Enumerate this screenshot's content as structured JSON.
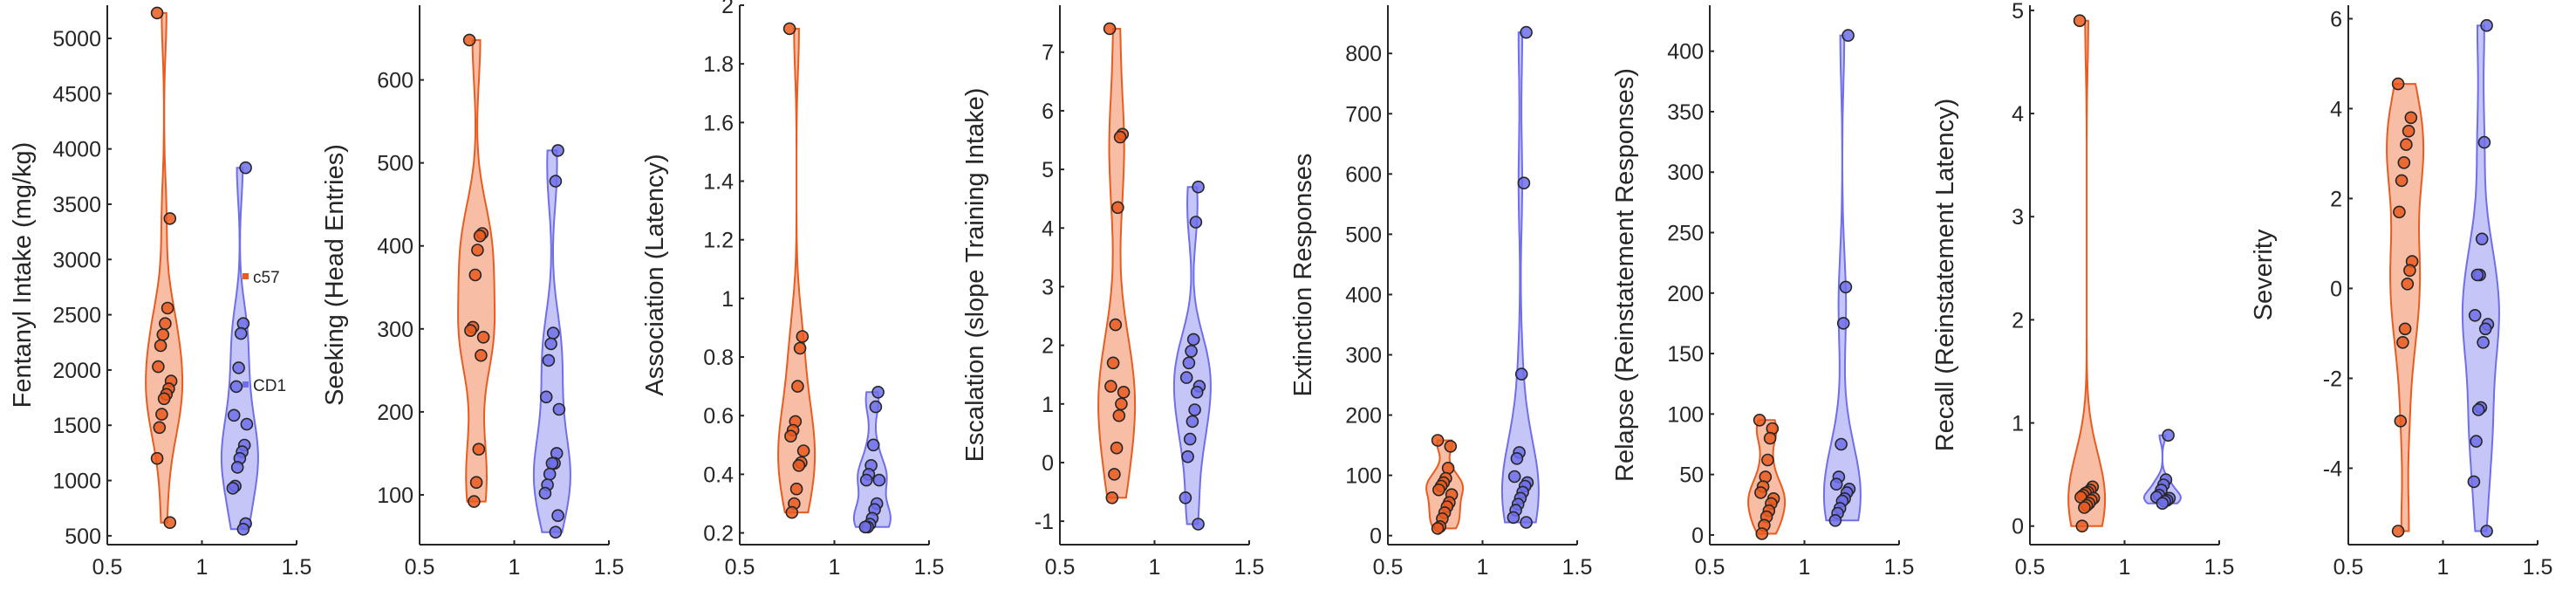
{
  "colors": {
    "c57": "#ea5b1f",
    "CD1": "#6f6fea"
  },
  "legend": {
    "c57": "c57",
    "CD1": "CD1"
  },
  "chart_data": [
    {
      "type": "violin",
      "ylabel": "Fentanyl Intake (mg/kg)",
      "xlim": [
        0.5,
        1.5
      ],
      "xticks": [
        0.5,
        1,
        1.5
      ],
      "xticklabels": [
        "0.5",
        "1",
        "1.5"
      ],
      "ylim": [
        420,
        5300
      ],
      "yticks": [
        500,
        1000,
        1500,
        2000,
        2500,
        3000,
        3500,
        4000,
        4500,
        5000
      ],
      "series": [
        {
          "name": "c57",
          "x": 0.8,
          "values": [
            5230,
            3370,
            2560,
            2420,
            2320,
            2220,
            2030,
            1900,
            1830,
            1780,
            1740,
            1600,
            1480,
            1200,
            620
          ]
        },
        {
          "name": "CD1",
          "x": 1.2,
          "values": [
            3830,
            2420,
            2330,
            2020,
            1850,
            1590,
            1510,
            1320,
            1260,
            1200,
            1120,
            950,
            930,
            610,
            560
          ]
        }
      ]
    },
    {
      "type": "violin",
      "ylabel": "Seeking (Head Entries)",
      "xlim": [
        0.5,
        1.5
      ],
      "xticks": [
        0.5,
        1,
        1.5
      ],
      "xticklabels": [
        "0.5",
        "1",
        "1.5"
      ],
      "ylim": [
        40,
        690
      ],
      "yticks": [
        100,
        200,
        300,
        400,
        500,
        600
      ],
      "series": [
        {
          "name": "c57",
          "x": 0.8,
          "values": [
            648,
            415,
            412,
            395,
            365,
            302,
            298,
            290,
            268,
            155,
            115,
            92
          ]
        },
        {
          "name": "CD1",
          "x": 1.2,
          "values": [
            515,
            478,
            295,
            282,
            262,
            218,
            203,
            150,
            138,
            138,
            125,
            112,
            102,
            75,
            55
          ]
        }
      ]
    },
    {
      "type": "violin",
      "ylabel": "Association (Latency)",
      "xlim": [
        0.5,
        1.5
      ],
      "xticks": [
        0.5,
        1,
        1.5
      ],
      "xticklabels": [
        "0.5",
        "1",
        "1.5"
      ],
      "ylim": [
        0.16,
        2.0
      ],
      "yticks": [
        0.2,
        0.4,
        0.6,
        0.8,
        1,
        1.2,
        1.4,
        1.6,
        1.8,
        2
      ],
      "series": [
        {
          "name": "c57",
          "x": 0.8,
          "values": [
            1.92,
            0.87,
            0.83,
            0.7,
            0.58,
            0.55,
            0.53,
            0.48,
            0.44,
            0.43,
            0.35,
            0.3,
            0.27
          ]
        },
        {
          "name": "CD1",
          "x": 1.2,
          "values": [
            0.68,
            0.63,
            0.5,
            0.43,
            0.4,
            0.38,
            0.38,
            0.3,
            0.28,
            0.25,
            0.23,
            0.22,
            0.22
          ]
        }
      ]
    },
    {
      "type": "violin",
      "ylabel": "Escalation (slope Training Intake)",
      "xlim": [
        0.5,
        1.5
      ],
      "xticks": [
        0.5,
        1,
        1.5
      ],
      "xticklabels": [
        "0.5",
        "1",
        "1.5"
      ],
      "ylim": [
        -1.4,
        7.8
      ],
      "yticks": [
        -1,
        0,
        1,
        2,
        3,
        4,
        5,
        6,
        7
      ],
      "series": [
        {
          "name": "c57",
          "x": 0.8,
          "values": [
            7.4,
            5.6,
            5.55,
            4.35,
            2.35,
            1.7,
            1.3,
            1.2,
            1.0,
            0.8,
            0.25,
            -0.2,
            -0.6
          ]
        },
        {
          "name": "CD1",
          "x": 1.2,
          "values": [
            4.7,
            4.1,
            2.1,
            1.9,
            1.7,
            1.45,
            1.3,
            1.2,
            0.9,
            0.7,
            0.4,
            0.1,
            -0.6,
            -1.05
          ]
        }
      ]
    },
    {
      "type": "violin",
      "ylabel": "Extinction Responses",
      "xlim": [
        0.5,
        1.5
      ],
      "xticks": [
        0.5,
        1,
        1.5
      ],
      "xticklabels": [
        "0.5",
        "1",
        "1.5"
      ],
      "ylim": [
        -15,
        880
      ],
      "yticks": [
        0,
        100,
        200,
        300,
        400,
        500,
        600,
        700,
        800
      ],
      "series": [
        {
          "name": "c57",
          "x": 0.8,
          "values": [
            158,
            148,
            112,
            95,
            88,
            82,
            76,
            68,
            55,
            48,
            38,
            28,
            15,
            12
          ]
        },
        {
          "name": "CD1",
          "x": 1.2,
          "values": [
            835,
            585,
            268,
            138,
            128,
            98,
            88,
            82,
            72,
            62,
            52,
            42,
            30,
            22
          ]
        }
      ]
    },
    {
      "type": "violin",
      "ylabel": "Relapse (Reinstatement Responses)",
      "xlim": [
        0.5,
        1.5
      ],
      "xticks": [
        0.5,
        1,
        1.5
      ],
      "xticklabels": [
        "0.5",
        "1",
        "1.5"
      ],
      "ylim": [
        -8,
        438
      ],
      "yticks": [
        0,
        50,
        100,
        150,
        200,
        250,
        300,
        350,
        400
      ],
      "series": [
        {
          "name": "c57",
          "x": 0.8,
          "values": [
            95,
            88,
            80,
            62,
            48,
            40,
            35,
            30,
            26,
            20,
            15,
            8,
            1
          ]
        },
        {
          "name": "CD1",
          "x": 1.2,
          "values": [
            413,
            205,
            175,
            75,
            48,
            42,
            38,
            35,
            30,
            28,
            22,
            18,
            12
          ]
        }
      ]
    },
    {
      "type": "violin",
      "ylabel": "Recall (Reinstatement Latency)",
      "xlim": [
        0.5,
        1.5
      ],
      "xticks": [
        0.5,
        1,
        1.5
      ],
      "xticklabels": [
        "0.5",
        "1",
        "1.5"
      ],
      "ylim": [
        -0.18,
        5.05
      ],
      "yticks": [
        0,
        1,
        2,
        3,
        4,
        5
      ],
      "series": [
        {
          "name": "c57",
          "x": 0.8,
          "values": [
            4.9,
            0.38,
            0.35,
            0.33,
            0.32,
            0.3,
            0.28,
            0.27,
            0.25,
            0.22,
            0.2,
            0.18,
            0.0
          ]
        },
        {
          "name": "CD1",
          "x": 1.2,
          "values": [
            0.88,
            0.45,
            0.4,
            0.35,
            0.3,
            0.28,
            0.27,
            0.25,
            0.24,
            0.22
          ]
        }
      ]
    },
    {
      "type": "violin",
      "ylabel": "Severity",
      "xlim": [
        0.5,
        1.5
      ],
      "xticks": [
        0.5,
        1,
        1.5
      ],
      "xticklabels": [
        "0.5",
        "1",
        "1.5"
      ],
      "ylim": [
        -5.7,
        6.3
      ],
      "yticks": [
        -4,
        -2,
        0,
        2,
        4,
        6
      ],
      "series": [
        {
          "name": "c57",
          "x": 0.8,
          "values": [
            4.55,
            3.8,
            3.5,
            3.2,
            2.8,
            2.4,
            1.7,
            0.6,
            0.4,
            0.1,
            -0.9,
            -1.2,
            -2.95,
            -5.4
          ]
        },
        {
          "name": "CD1",
          "x": 1.2,
          "values": [
            5.85,
            3.25,
            1.1,
            0.3,
            0.3,
            -0.6,
            -0.8,
            -0.9,
            -1.2,
            -2.65,
            -2.7,
            -3.4,
            -4.3,
            -5.4
          ]
        }
      ]
    }
  ]
}
